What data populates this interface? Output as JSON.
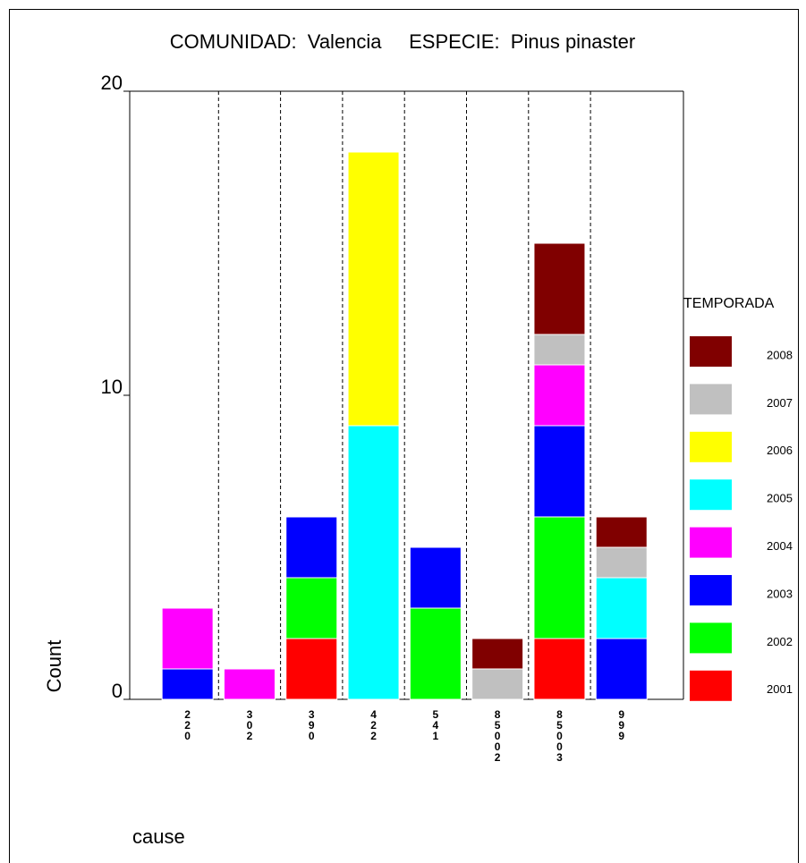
{
  "chart_data": {
    "type": "stacked-bar",
    "title": "COMUNIDAD:  Valencia     ESPECIE:  Pinus pinaster",
    "x_label": "cause",
    "y_label": "Count",
    "legend_title": "TEMPORADA",
    "categories": [
      "220",
      "302",
      "390",
      "422",
      "541",
      "85002",
      "85003",
      "999"
    ],
    "series": [
      {
        "name": "2001",
        "color": "#ff0000",
        "values": [
          0,
          0,
          2,
          0,
          0,
          0,
          2,
          0
        ]
      },
      {
        "name": "2002",
        "color": "#00ff00",
        "values": [
          0,
          0,
          2,
          0,
          3,
          0,
          4,
          0
        ]
      },
      {
        "name": "2003",
        "color": "#0000ff",
        "values": [
          1,
          0,
          2,
          0,
          2,
          0,
          3,
          2
        ]
      },
      {
        "name": "2004",
        "color": "#ff00ff",
        "values": [
          2,
          1,
          0,
          0,
          0,
          0,
          2,
          0
        ]
      },
      {
        "name": "2005",
        "color": "#00ffff",
        "values": [
          0,
          0,
          0,
          9,
          0,
          0,
          0,
          2
        ]
      },
      {
        "name": "2006",
        "color": "#ffff00",
        "values": [
          0,
          0,
          0,
          9,
          0,
          0,
          0,
          0
        ]
      },
      {
        "name": "2007",
        "color": "#c0c0c0",
        "values": [
          0,
          0,
          0,
          0,
          0,
          1,
          1,
          1
        ]
      },
      {
        "name": "2008",
        "color": "#800000",
        "values": [
          0,
          0,
          0,
          0,
          0,
          1,
          3,
          1
        ]
      }
    ],
    "ylim": [
      0,
      20
    ],
    "yticks": [
      0,
      10,
      20
    ],
    "legend": "right"
  }
}
